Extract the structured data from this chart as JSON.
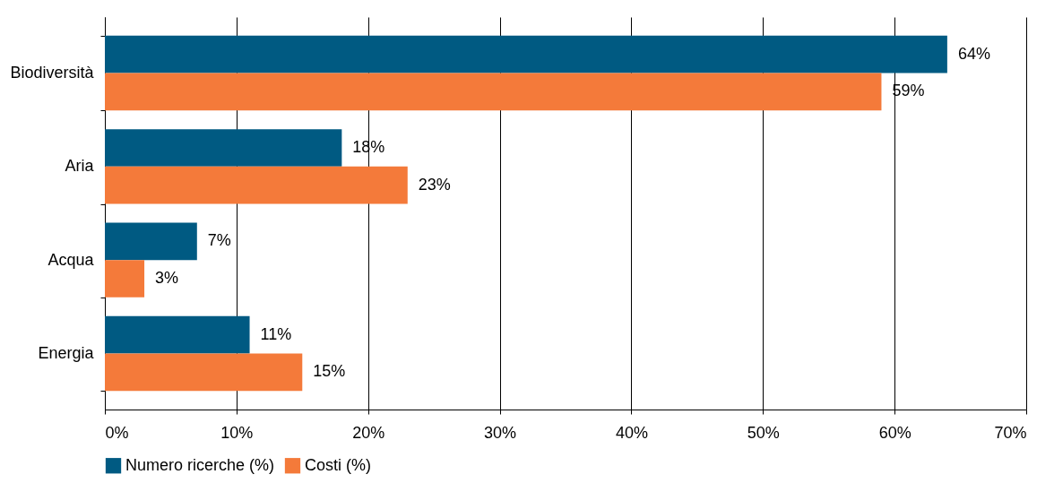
{
  "chart_data": {
    "type": "bar",
    "orientation": "horizontal",
    "categories": [
      "Biodiversità",
      "Aria",
      "Acqua",
      "Energia"
    ],
    "series": [
      {
        "name": "Numero ricerche (%)",
        "color": "#005a82",
        "values": [
          64,
          18,
          7,
          11
        ],
        "value_labels": [
          "64%",
          "18%",
          "7%",
          "11%"
        ]
      },
      {
        "name": "Costi (%)",
        "color": "#f47a3a",
        "values": [
          59,
          23,
          3,
          15
        ],
        "value_labels": [
          "59%",
          "23%",
          "3%",
          "15%"
        ]
      }
    ],
    "xlim": [
      0,
      70
    ],
    "xticks": [
      {
        "value": 0,
        "label": "0%"
      },
      {
        "value": 10,
        "label": "10%"
      },
      {
        "value": 20,
        "label": "20%"
      },
      {
        "value": 30,
        "label": "30%"
      },
      {
        "value": 40,
        "label": "40%"
      },
      {
        "value": 50,
        "label": "50%"
      },
      {
        "value": 60,
        "label": "60%"
      },
      {
        "value": 70,
        "label": "70%"
      }
    ],
    "grid": "x",
    "legend": "bottom"
  }
}
